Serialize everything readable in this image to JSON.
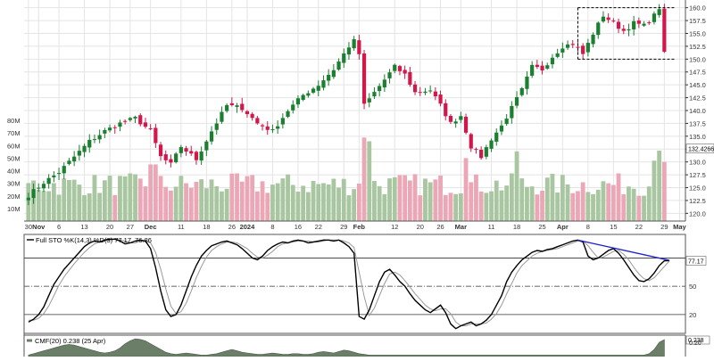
{
  "chart_data": [
    {
      "type": "candlestick",
      "panel": "price",
      "ylim": [
        118.5,
        161.5
      ],
      "y_ticks": [
        120.0,
        122.5,
        125.0,
        127.5,
        130.0,
        132.5,
        135.0,
        137.5,
        140.0,
        142.5,
        145.0,
        147.5,
        150.0,
        152.5,
        155.0,
        157.5,
        160.0
      ],
      "y_tick_labels": [
        "120.0",
        "122.5",
        "125.0",
        "127.5",
        "130.0",
        "132.5",
        "135.0",
        "137.5",
        "140.0",
        "142.5",
        "145.0",
        "147.5",
        "150.0",
        "152.5",
        "155.0",
        "157.5",
        "160.0"
      ],
      "last_price_label": "132.4266",
      "x_labels": [
        {
          "label": "30",
          "bar": 0,
          "bold": false
        },
        {
          "label": "Nov",
          "bar": 2,
          "bold": true
        },
        {
          "label": "6",
          "bar": 6,
          "bold": false
        },
        {
          "label": "13",
          "bar": 11,
          "bold": false
        },
        {
          "label": "20",
          "bar": 16,
          "bold": false
        },
        {
          "label": "27",
          "bar": 20,
          "bold": false
        },
        {
          "label": "Dec",
          "bar": 24,
          "bold": true
        },
        {
          "label": "11",
          "bar": 30,
          "bold": false
        },
        {
          "label": "18",
          "bar": 35,
          "bold": false
        },
        {
          "label": "26",
          "bar": 40,
          "bold": false
        },
        {
          "label": "2024",
          "bar": 43,
          "bold": true
        },
        {
          "label": "8",
          "bar": 48,
          "bold": false
        },
        {
          "label": "16",
          "bar": 53,
          "bold": false
        },
        {
          "label": "22",
          "bar": 57,
          "bold": false
        },
        {
          "label": "29",
          "bar": 62,
          "bold": false
        },
        {
          "label": "Feb",
          "bar": 65,
          "bold": true
        },
        {
          "label": "12",
          "bar": 72,
          "bold": false
        },
        {
          "label": "20",
          "bar": 77,
          "bold": false
        },
        {
          "label": "26",
          "bar": 81,
          "bold": false
        },
        {
          "label": "Mar",
          "bar": 85,
          "bold": true
        },
        {
          "label": "11",
          "bar": 91,
          "bold": false
        },
        {
          "label": "18",
          "bar": 96,
          "bold": false
        },
        {
          "label": "25",
          "bar": 101,
          "bold": false
        },
        {
          "label": "Apr",
          "bar": 105,
          "bold": true
        },
        {
          "label": "8",
          "bar": 110,
          "bold": false
        },
        {
          "label": "15",
          "bar": 115,
          "bold": false
        },
        {
          "label": "22",
          "bar": 120,
          "bold": false
        },
        {
          "label": "29",
          "bar": 125,
          "bold": false
        },
        {
          "label": "May",
          "bar": 128,
          "bold": true
        }
      ],
      "anchors": [
        [
          0,
          123.5
        ],
        [
          3,
          126.0
        ],
        [
          6,
          128.0
        ],
        [
          9,
          131.0
        ],
        [
          12,
          134.0
        ],
        [
          15,
          136.0
        ],
        [
          18,
          137.5
        ],
        [
          21,
          138.5
        ],
        [
          24,
          136.0
        ],
        [
          26,
          131.0
        ],
        [
          28,
          129.5
        ],
        [
          30,
          133.0
        ],
        [
          33,
          130.5
        ],
        [
          36,
          136.0
        ],
        [
          39,
          141.0
        ],
        [
          42,
          140.5
        ],
        [
          45,
          137.5
        ],
        [
          48,
          136.0
        ],
        [
          51,
          140.0
        ],
        [
          54,
          143.0
        ],
        [
          57,
          145.0
        ],
        [
          60,
          148.0
        ],
        [
          63,
          152.5
        ],
        [
          64,
          153.5
        ],
        [
          65,
          151.0
        ],
        [
          66,
          141.0
        ],
        [
          68,
          143.5
        ],
        [
          70,
          146.0
        ],
        [
          72,
          148.5
        ],
        [
          74,
          147.0
        ],
        [
          76,
          143.5
        ],
        [
          79,
          144.0
        ],
        [
          81,
          141.0
        ],
        [
          83,
          137.5
        ],
        [
          85,
          139.0
        ],
        [
          87,
          133.0
        ],
        [
          89,
          131.0
        ],
        [
          91,
          134.5
        ],
        [
          93,
          137.0
        ],
        [
          95,
          140.5
        ],
        [
          97,
          144.0
        ],
        [
          99,
          148.5
        ],
        [
          101,
          148.0
        ],
        [
          103,
          150.5
        ],
        [
          105,
          152.5
        ],
        [
          107,
          153.0
        ],
        [
          109,
          151.0
        ],
        [
          111,
          155.0
        ],
        [
          113,
          158.5
        ],
        [
          115,
          157.0
        ],
        [
          117,
          155.5
        ],
        [
          119,
          157.0
        ],
        [
          121,
          156.5
        ],
        [
          123,
          158.5
        ],
        [
          124,
          160.0
        ],
        [
          125,
          151.0
        ]
      ],
      "annotation_box": {
        "bar_start": 108,
        "bar_end": 127,
        "top": 160.0,
        "bottom": 150.0
      }
    },
    {
      "type": "bar",
      "panel": "volume",
      "ylim": [
        0,
        85
      ],
      "y_ticks": [
        10,
        20,
        30,
        40,
        50,
        60,
        70,
        80
      ],
      "y_tick_labels": [
        "10M",
        "20M",
        "30M",
        "40M",
        "50M",
        "60M",
        "70M",
        "80M"
      ],
      "unit": "M"
    },
    {
      "type": "line",
      "panel": "stochastic",
      "title": "Full STO %K(14,3) %D(3) 77.17, 76.86",
      "ylim": [
        0,
        105
      ],
      "y_ticks": [
        20,
        50,
        80
      ],
      "y_tick_labels": [
        "20",
        "50",
        ""
      ],
      "current_k_label": "77.17",
      "series": [
        {
          "name": "%K",
          "color": "#000000",
          "values": [
            12,
            15,
            20,
            28,
            40,
            52,
            60,
            68,
            74,
            80,
            86,
            92,
            96,
            98,
            97,
            99,
            100,
            100,
            98,
            95,
            96,
            98,
            99,
            98,
            90,
            70,
            45,
            25,
            18,
            20,
            30,
            45,
            60,
            72,
            82,
            88,
            93,
            95,
            97,
            98,
            96,
            94,
            90,
            85,
            80,
            78,
            82,
            88,
            92,
            95,
            97,
            96,
            98,
            99,
            98,
            96,
            97,
            98,
            99,
            99,
            98,
            99,
            96,
            92,
            85,
            18,
            15,
            25,
            40,
            55,
            65,
            68,
            62,
            55,
            50,
            42,
            35,
            30,
            25,
            22,
            26,
            30,
            22,
            10,
            5,
            8,
            10,
            12,
            8,
            10,
            14,
            20,
            30,
            40,
            55,
            65,
            72,
            78,
            82,
            86,
            88,
            87,
            89,
            90,
            92,
            94,
            96,
            98,
            99,
            97,
            82,
            78,
            80,
            84,
            88,
            90,
            85,
            78,
            70,
            62,
            56,
            55,
            58,
            64,
            72,
            77,
            77.17
          ]
        },
        {
          "name": "%D",
          "color": "#999999",
          "values": [
            14,
            14,
            16,
            21,
            29,
            40,
            51,
            60,
            67,
            74,
            80,
            86,
            91,
            95,
            97,
            98,
            99,
            100,
            99,
            98,
            96,
            96,
            98,
            98,
            96,
            86,
            68,
            47,
            29,
            21,
            23,
            32,
            45,
            59,
            71,
            81,
            88,
            92,
            95,
            97,
            97,
            96,
            93,
            90,
            85,
            81,
            80,
            83,
            87,
            92,
            95,
            96,
            97,
            98,
            98,
            98,
            97,
            97,
            98,
            99,
            99,
            99,
            98,
            96,
            91,
            65,
            39,
            19,
            27,
            40,
            53,
            63,
            65,
            62,
            56,
            49,
            42,
            36,
            30,
            26,
            24,
            26,
            26,
            21,
            12,
            8,
            8,
            10,
            10,
            10,
            11,
            15,
            21,
            30,
            42,
            53,
            64,
            72,
            77,
            82,
            85,
            87,
            88,
            89,
            90,
            92,
            94,
            96,
            98,
            98,
            93,
            86,
            80,
            81,
            84,
            87,
            88,
            84,
            78,
            70,
            63,
            58,
            56,
            59,
            65,
            71,
            76.86
          ]
        }
      ],
      "trendline": {
        "color": "#2222cc",
        "bar_start": 108,
        "value_start": 99,
        "bar_end": 126,
        "value_end": 77.5
      }
    },
    {
      "type": "area",
      "panel": "cmf",
      "title": "CMF(20) 0.238 (25 Apr)",
      "ylim": [
        0.0,
        0.3
      ],
      "y_ticks": [
        0.2
      ],
      "y_tick_labels": [
        "0.20"
      ],
      "current_label": "0.238",
      "color": "#6b7f68",
      "values": [
        0.02,
        0.04,
        0.06,
        0.08,
        0.1,
        0.12,
        0.14,
        0.16,
        0.17,
        0.16,
        0.14,
        0.12,
        0.1,
        0.08,
        0.06,
        0.05,
        0.06,
        0.08,
        0.12,
        0.18,
        0.22,
        0.25,
        0.24,
        0.22,
        0.18,
        0.14,
        0.1,
        0.06,
        0.04,
        0.03,
        0.04,
        0.05,
        0.04,
        0.03,
        0.02,
        0.02,
        0.03,
        0.04,
        0.06,
        0.08,
        0.1,
        0.08,
        0.06,
        0.05,
        0.04,
        0.03,
        0.03,
        0.04,
        0.05,
        0.04,
        0.03,
        0.03,
        0.04,
        0.04,
        0.03,
        0.03,
        0.04,
        0.06,
        0.07,
        0.06,
        0.05,
        0.07,
        0.09,
        0.08,
        0.06,
        0.04,
        0.03,
        0.02,
        0.02,
        0.02,
        0.02,
        0.02,
        0.02,
        0.02,
        0.02,
        0.02,
        0.02,
        0.02,
        0.02,
        0.02,
        0.02,
        0.02,
        0.02,
        0.02,
        0.02,
        0.02,
        0.02,
        0.02,
        0.02,
        0.02,
        0.02,
        0.02,
        0.02,
        0.02,
        0.02,
        0.02,
        0.02,
        0.02,
        0.02,
        0.02,
        0.02,
        0.02,
        0.02,
        0.02,
        0.02,
        0.02,
        0.02,
        0.02,
        0.02,
        0.02,
        0.02,
        0.02,
        0.02,
        0.02,
        0.02,
        0.02,
        0.02,
        0.02,
        0.02,
        0.02,
        0.02,
        0.02,
        0.04,
        0.1,
        0.2,
        0.238
      ]
    }
  ],
  "colors": {
    "up_candle": "#1a7f2e",
    "down_candle": "#d2184a",
    "up_volume": "#a8c6a0",
    "down_volume": "#eba7b6",
    "grid": "#e4e4e4",
    "panel_border": "#555555"
  }
}
